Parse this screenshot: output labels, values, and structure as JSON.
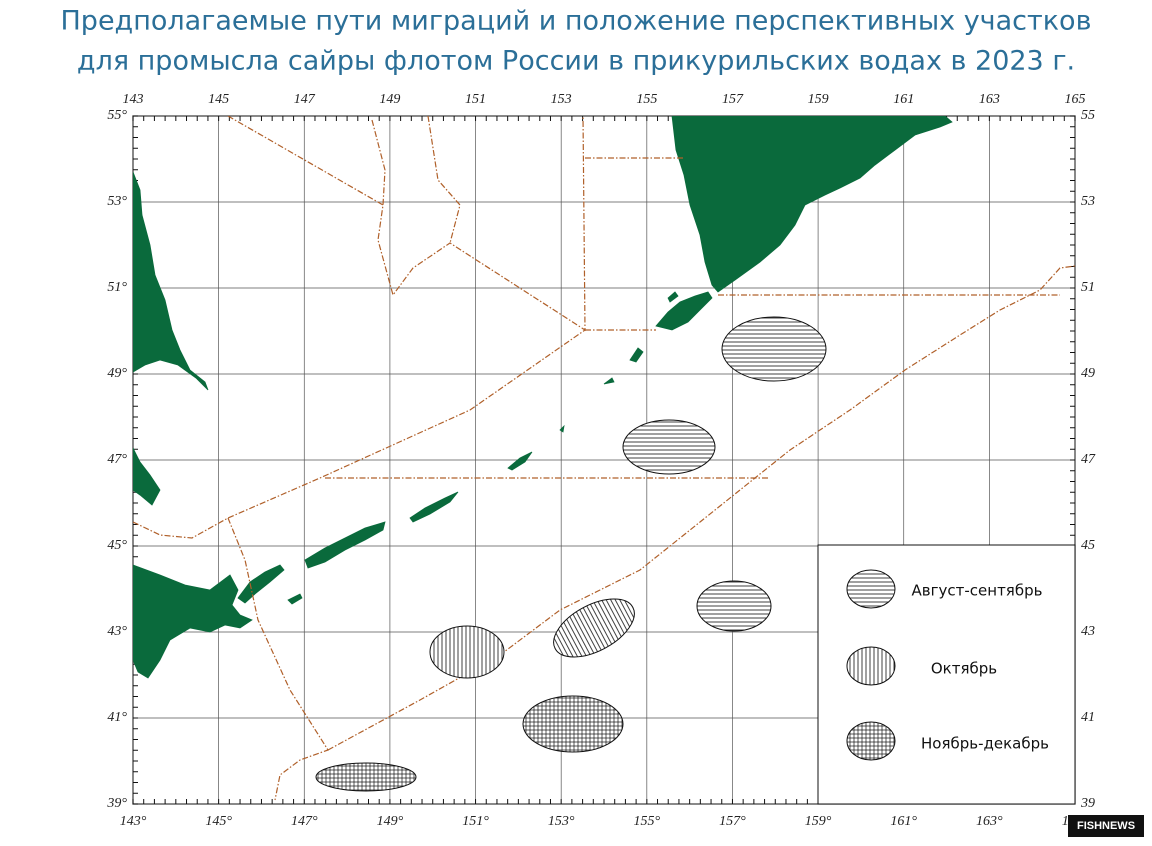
{
  "header": {
    "title_lines": [
      "Предполагаемые пути миграций и положение перспективных участков",
      "для промысла сайры флотом России в прикурильских водах в 2023 г."
    ]
  },
  "map": {
    "lon_ticks": [
      {
        "value": 143,
        "label": "143°"
      },
      {
        "value": 145,
        "label": "145°"
      },
      {
        "value": 147,
        "label": "147°"
      },
      {
        "value": 149,
        "label": "149°"
      },
      {
        "value": 151,
        "label": "151°"
      },
      {
        "value": 153,
        "label": "153°"
      },
      {
        "value": 155,
        "label": "155°"
      },
      {
        "value": 157,
        "label": "157°"
      },
      {
        "value": 159,
        "label": "159°"
      },
      {
        "value": 161,
        "label": "161°"
      },
      {
        "value": 163,
        "label": "163°"
      },
      {
        "value": 165,
        "label": "165°"
      }
    ],
    "lat_ticks": [
      {
        "value": 55,
        "label": "55°"
      },
      {
        "value": 53,
        "label": "53°"
      },
      {
        "value": 51,
        "label": "51°"
      },
      {
        "value": 49,
        "label": "49°"
      },
      {
        "value": 47,
        "label": "47°"
      },
      {
        "value": 45,
        "label": "45°"
      },
      {
        "value": 43,
        "label": "43°"
      },
      {
        "value": 41,
        "label": "41°"
      },
      {
        "value": 39,
        "label": "39°"
      }
    ],
    "legend": [
      "Август-сентябрь",
      "Октябрь",
      "Ноябрь-декабрь"
    ]
  },
  "watermark": "FISHNEWS"
}
